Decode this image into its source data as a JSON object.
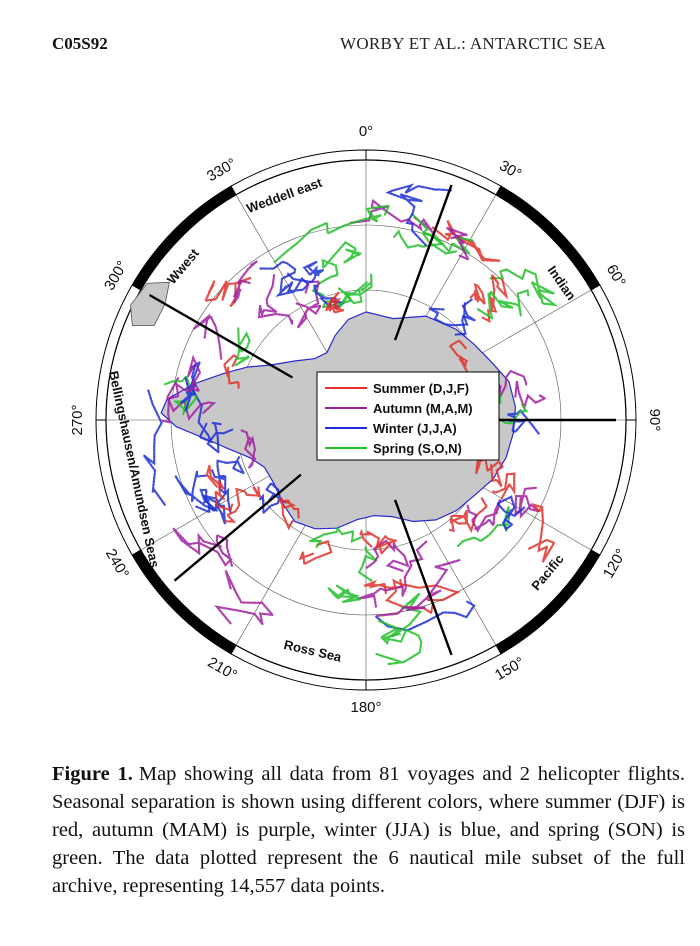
{
  "header": {
    "article_id": "C05S92",
    "running_title": "WORBY ET AL.: ANTARCTIC SEA"
  },
  "map": {
    "longitude_labels": [
      {
        "text": "0",
        "deg": 0
      },
      {
        "text": "30",
        "deg": 30
      },
      {
        "text": "60",
        "deg": 60
      },
      {
        "text": "90",
        "deg": 90
      },
      {
        "text": "120",
        "deg": 120
      },
      {
        "text": "150",
        "deg": 150
      },
      {
        "text": "180",
        "deg": 180
      },
      {
        "text": "210",
        "deg": 210
      },
      {
        "text": "240",
        "deg": 240
      },
      {
        "text": "270",
        "deg": 270
      },
      {
        "text": "300",
        "deg": 300
      },
      {
        "text": "330",
        "deg": 330
      }
    ],
    "regions": [
      {
        "name": "Weddell east",
        "deg": 340
      },
      {
        "name": "Indian",
        "deg": 55
      },
      {
        "name": "Pacific",
        "deg": 130
      },
      {
        "name": "Ross Sea",
        "deg": 193
      },
      {
        "name": "Bellingshausen/Amundsen Seas",
        "deg": 258
      },
      {
        "name": "Wwest",
        "deg": 310
      }
    ],
    "sector_boundaries_deg": [
      20,
      90,
      160,
      230,
      300
    ],
    "legend": [
      {
        "label": "Summer (D,J,F)",
        "color": "#e0302a"
      },
      {
        "label": "Autumn (M,A,M)",
        "color": "#a020a0"
      },
      {
        "label": "Winter (J,J,A)",
        "color": "#1f2fd6"
      },
      {
        "label": "Spring (S,O,N)",
        "color": "#22c02a"
      }
    ],
    "colors": {
      "land": "#c8c8c8",
      "coast": "#2a2ad0",
      "frame_dark": "#000000",
      "grid": "#555555"
    }
  },
  "caption": {
    "label": "Figure 1.",
    "text": "Map showing all data from 81 voyages and 2 helicopter flights. Seasonal separation is shown using different colors, where summer (DJF) is red, autumn (MAM) is purple, winter (JJA) is blue, and spring (SON) is green. The data plotted represent the 6 nautical mile subset of the full archive, representing 14,557 data points."
  }
}
